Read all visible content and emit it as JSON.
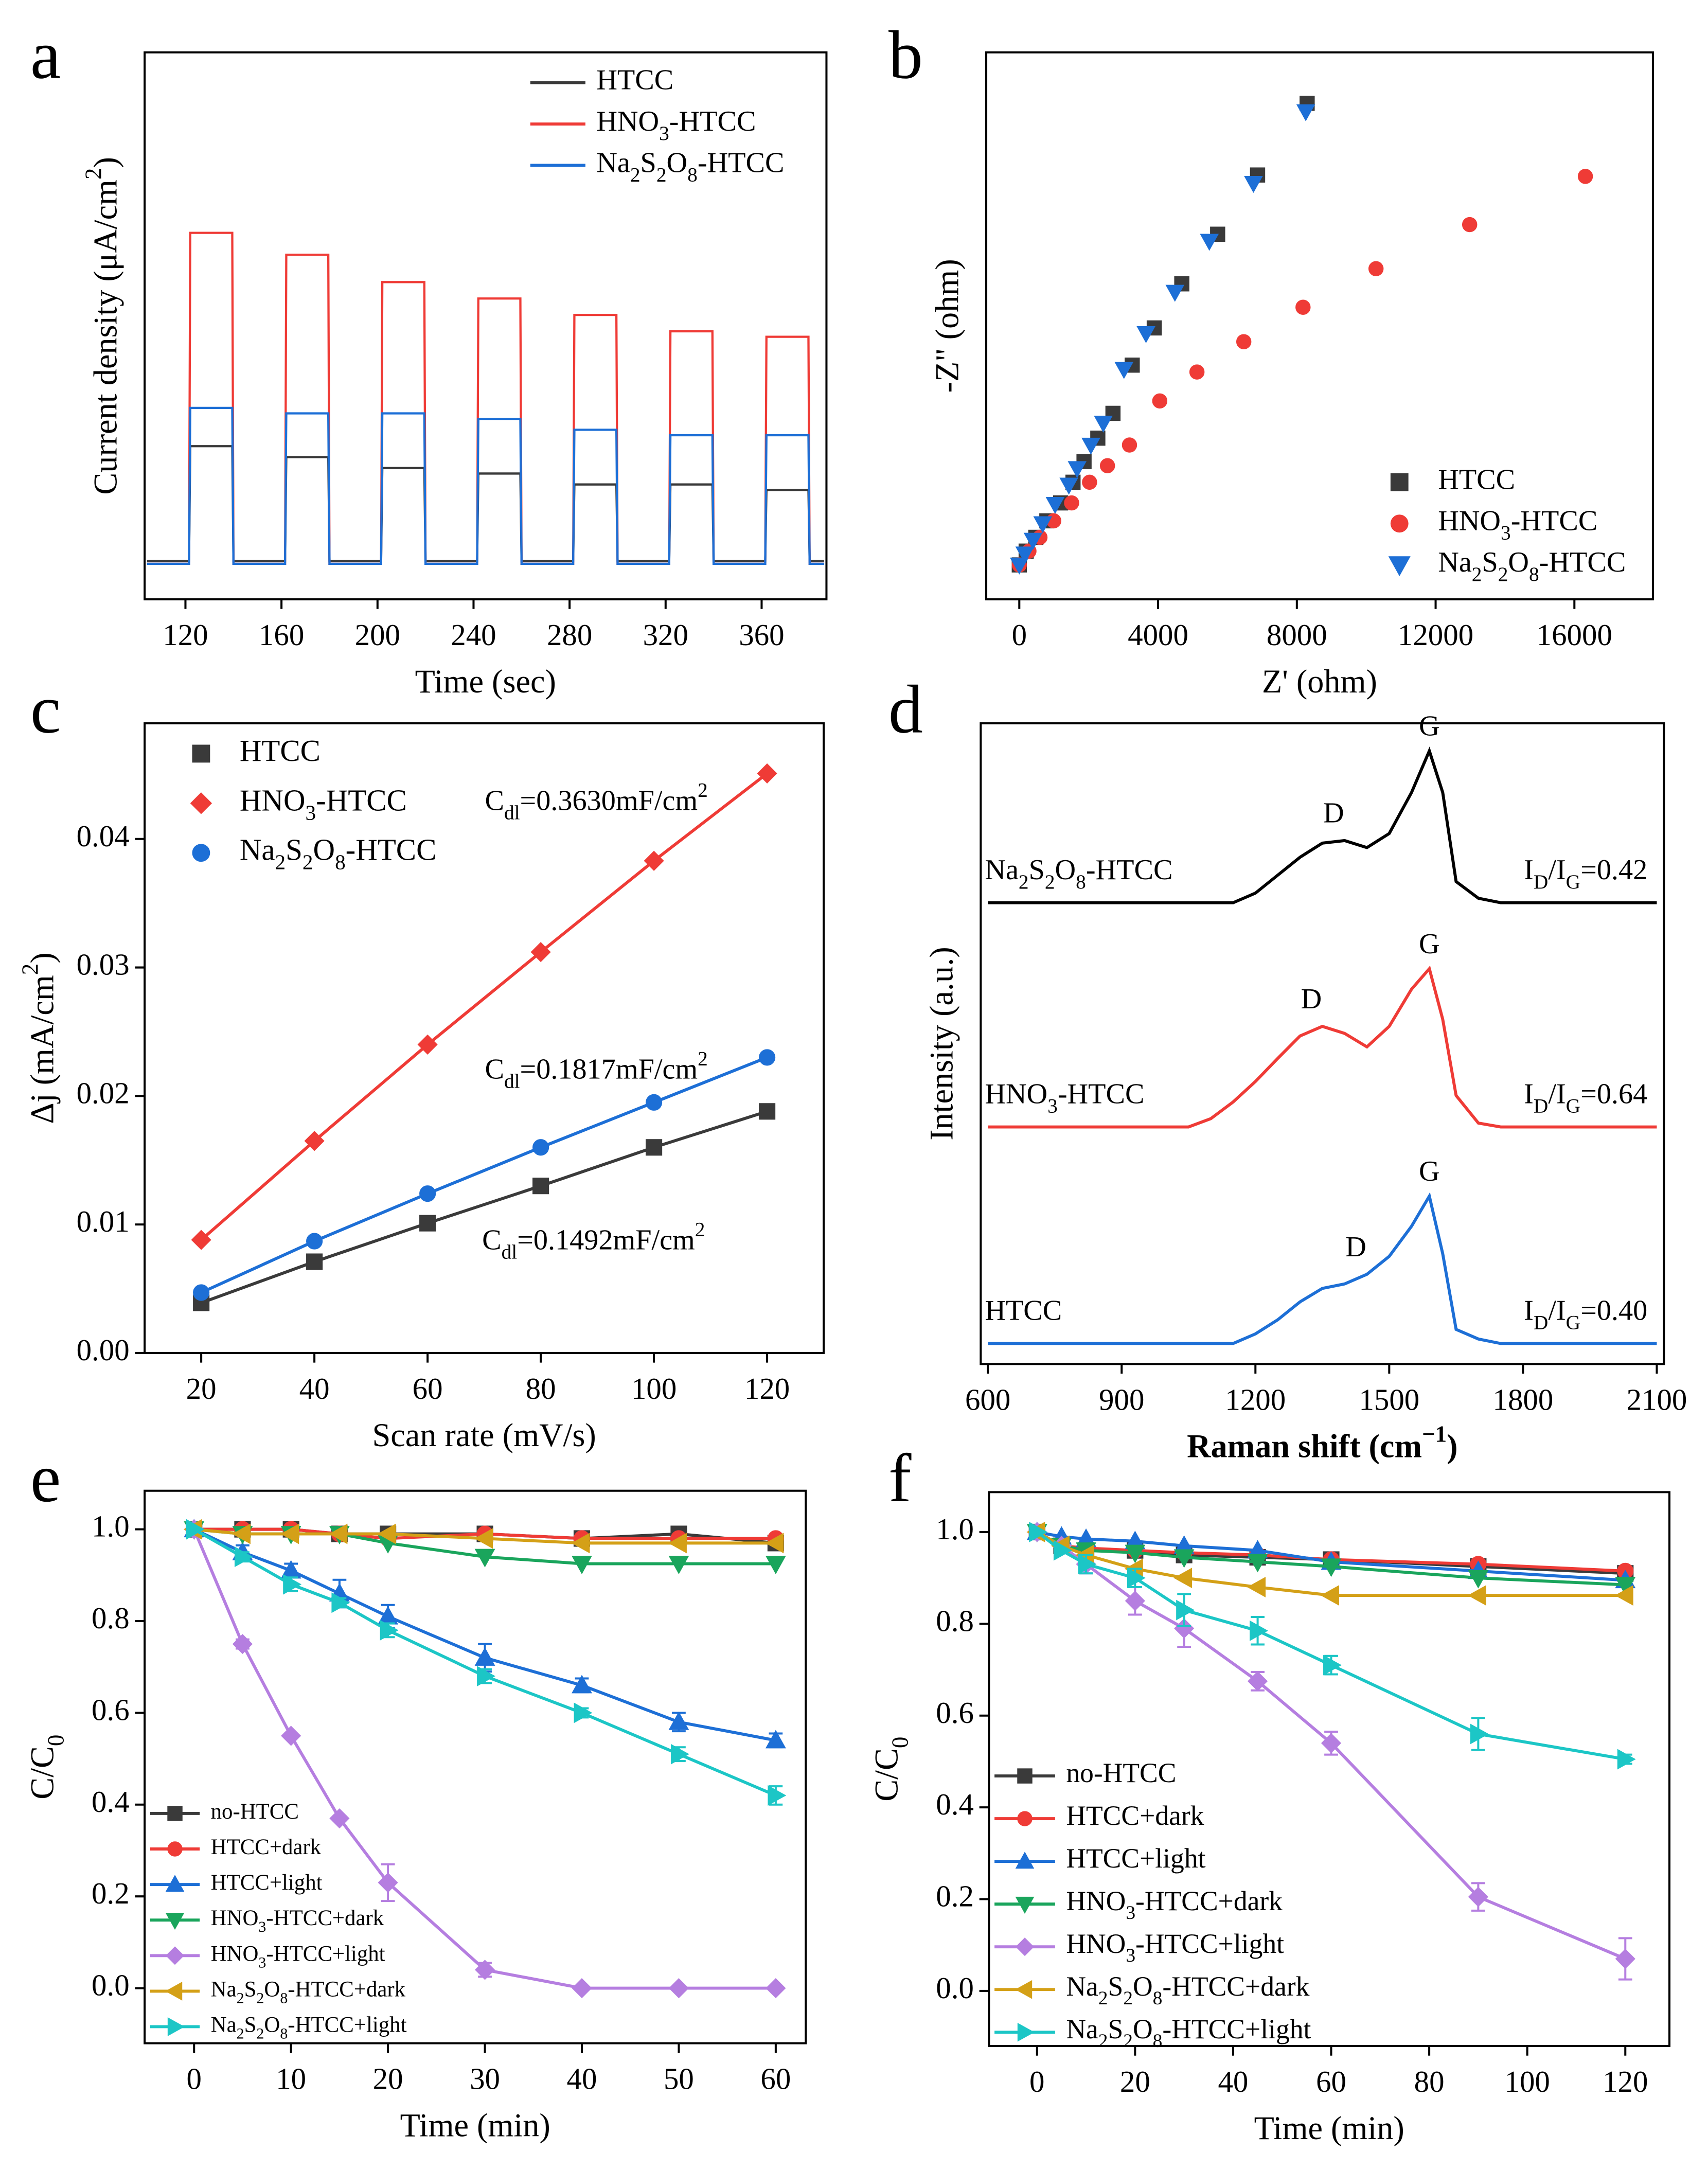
{
  "chart_data": [
    {
      "type": "line",
      "panel_label": "a",
      "x_label": "Time (sec)",
      "y_label": "Current density (μA/cm2)",
      "legend": "upper right",
      "x": [
        104,
        121.5,
        122,
        139.5,
        140,
        161.5,
        162,
        179.5,
        180,
        201.5,
        202,
        219.5,
        220,
        241.5,
        242,
        259.5,
        260,
        281.5,
        282,
        299.5,
        300,
        321.5,
        322,
        339.5,
        340,
        361.5,
        362,
        379.5,
        380,
        386
      ],
      "xlim": [
        103,
        387
      ],
      "xticks": [
        120,
        160,
        200,
        240,
        280,
        320,
        360
      ],
      "ylim": [
        0,
        1
      ],
      "series": [
        {
          "name": "HTCC",
          "color": "#3a3a3a",
          "values": [
            0.07,
            0.07,
            0.28,
            0.28,
            0.07,
            0.07,
            0.26,
            0.26,
            0.07,
            0.07,
            0.24,
            0.24,
            0.07,
            0.07,
            0.23,
            0.23,
            0.07,
            0.07,
            0.21,
            0.21,
            0.07,
            0.07,
            0.21,
            0.21,
            0.07,
            0.07,
            0.2,
            0.2,
            0.07,
            0.07
          ]
        },
        {
          "name": "HNO3-HTCC",
          "color": "#ef3b36",
          "values": [
            0.065,
            0.065,
            0.67,
            0.67,
            0.065,
            0.065,
            0.63,
            0.63,
            0.065,
            0.065,
            0.58,
            0.58,
            0.065,
            0.065,
            0.55,
            0.55,
            0.065,
            0.065,
            0.52,
            0.52,
            0.065,
            0.065,
            0.49,
            0.49,
            0.065,
            0.065,
            0.48,
            0.48,
            0.065,
            0.065
          ]
        },
        {
          "name": "Na2S2O8-HTCC",
          "color": "#1d6fd6",
          "values": [
            0.065,
            0.065,
            0.35,
            0.35,
            0.065,
            0.065,
            0.34,
            0.34,
            0.065,
            0.065,
            0.34,
            0.34,
            0.065,
            0.065,
            0.33,
            0.33,
            0.065,
            0.065,
            0.31,
            0.31,
            0.065,
            0.065,
            0.3,
            0.3,
            0.065,
            0.065,
            0.3,
            0.3,
            0.065,
            0.065
          ]
        }
      ]
    },
    {
      "type": "scatter",
      "panel_label": "b",
      "x_label": "Z' (ohm)",
      "y_label": "-Z\" (ohm)",
      "legend": "lower right",
      "xlim": [
        -953,
        18263
      ],
      "xticks": [
        0,
        4000,
        8000,
        12000,
        16000
      ],
      "ylim": [
        -992,
        14768
      ],
      "series": [
        {
          "name": "HTCC",
          "color": "#3a3a3a",
          "marker": "square",
          "x": [
            0,
            198,
            476,
            794,
            1191,
            1548,
            1866,
            2263,
            2700,
            3255,
            3890,
            4684,
            5717,
            6868,
            8297
          ],
          "values": [
            0,
            397,
            794,
            1270,
            1786,
            2382,
            2977,
            3652,
            4367,
            5756,
            6828,
            8098,
            9528,
            11234,
            13299
          ]
        },
        {
          "name": "HNO3-HTCC",
          "color": "#ef3b36",
          "marker": "circle",
          "x": [
            0,
            278,
            595,
            992,
            1508,
            2025,
            2541,
            3176,
            4049,
            5121,
            6471,
            8178,
            10282,
            12981,
            16316
          ],
          "values": [
            0,
            397,
            794,
            1270,
            1786,
            2382,
            2858,
            3454,
            4724,
            5558,
            6431,
            7424,
            8535,
            9805,
            11195
          ]
        },
        {
          "name": "Na2S2O8-HTCC",
          "color": "#1d6fd6",
          "marker": "triangle-down",
          "x": [
            0,
            159,
            397,
            675,
            1032,
            1429,
            1667,
            2064,
            2421,
            3017,
            3652,
            4486,
            5478,
            6749,
            8257
          ],
          "values": [
            0,
            318,
            714,
            1191,
            1747,
            2303,
            2779,
            3454,
            4089,
            5637,
            6669,
            7860,
            9329,
            10996,
            13061
          ]
        }
      ]
    },
    {
      "type": "line",
      "panel_label": "c",
      "x_label": "Scan rate (mV/s)",
      "y_label": "Δj (mA/cm2)",
      "legend": "upper left",
      "x": [
        20,
        40,
        60,
        80,
        100,
        120
      ],
      "xlim": [
        10,
        130
      ],
      "xticks": [
        20,
        40,
        60,
        80,
        100,
        120
      ],
      "ylim": [
        0,
        0.049
      ],
      "yticks": [
        {
          "value": 0,
          "label": "0.00"
        },
        0.01,
        0.02,
        0.03,
        0.04
      ],
      "annotations": [
        "Cdl=0.3630mF/cm2",
        "Cdl=0.1817mF/cm2",
        "Cdl=0.1492mF/cm2"
      ],
      "series": [
        {
          "name": "HTCC",
          "color": "#3a3a3a",
          "marker": "square",
          "values": [
            0.0039,
            0.0071,
            0.0101,
            0.013,
            0.016,
            0.0188
          ]
        },
        {
          "name": "HNO3-HTCC",
          "color": "#ef3b36",
          "marker": "diamond",
          "values": [
            0.0088,
            0.0165,
            0.024,
            0.0312,
            0.0383,
            0.0451
          ]
        },
        {
          "name": "Na2S2O8-HTCC",
          "color": "#1d6fd6",
          "marker": "circle",
          "values": [
            0.0047,
            0.0087,
            0.0124,
            0.016,
            0.0195,
            0.023
          ]
        }
      ]
    },
    {
      "type": "spectra",
      "panel_label": "d",
      "x_label": "Raman shift (cm−1)",
      "y_label": "Intensity (a.u.)",
      "peak_labels": [
        "D",
        "G"
      ],
      "x": [
        600,
        650,
        700,
        750,
        800,
        850,
        900,
        950,
        1000,
        1050,
        1100,
        1150,
        1200,
        1250,
        1300,
        1350,
        1400,
        1450,
        1500,
        1550,
        1590,
        1620,
        1650,
        1700,
        1750,
        1800,
        1850,
        1900,
        1950,
        2000,
        2050,
        2100
      ],
      "xlim": [
        584,
        2116
      ],
      "xticks": [
        600,
        900,
        1200,
        1500,
        1800,
        2100
      ],
      "ylim": [
        0,
        1
      ],
      "series": [
        {
          "name": "Na2S2O8-HTCC",
          "ratio": "ID/IG=0.42",
          "color": "#000000",
          "values": [
            0.72,
            0.72,
            0.72,
            0.72,
            0.72,
            0.72,
            0.72,
            0.72,
            0.72,
            0.72,
            0.72,
            0.72,
            0.735,
            0.763,
            0.791,
            0.813,
            0.817,
            0.806,
            0.828,
            0.892,
            0.957,
            0.892,
            0.753,
            0.727,
            0.72,
            0.72,
            0.72,
            0.72,
            0.72,
            0.72,
            0.72,
            0.72
          ]
        },
        {
          "name": "HNO3-HTCC",
          "ratio": "ID/IG=0.64",
          "color": "#ef3b36",
          "values": [
            0.37,
            0.37,
            0.37,
            0.37,
            0.37,
            0.37,
            0.37,
            0.37,
            0.37,
            0.37,
            0.383,
            0.409,
            0.441,
            0.477,
            0.512,
            0.527,
            0.516,
            0.495,
            0.527,
            0.585,
            0.617,
            0.538,
            0.419,
            0.376,
            0.37,
            0.37,
            0.37,
            0.37,
            0.37,
            0.37,
            0.37,
            0.37
          ]
        },
        {
          "name": "HTCC",
          "ratio": "ID/IG=0.40",
          "color": "#1d6fd6",
          "values": [
            0.032,
            0.032,
            0.032,
            0.032,
            0.032,
            0.032,
            0.032,
            0.032,
            0.032,
            0.032,
            0.032,
            0.032,
            0.047,
            0.069,
            0.097,
            0.118,
            0.125,
            0.14,
            0.168,
            0.215,
            0.262,
            0.172,
            0.054,
            0.039,
            0.032,
            0.032,
            0.032,
            0.032,
            0.032,
            0.032,
            0.032,
            0.032
          ]
        }
      ]
    },
    {
      "type": "line",
      "panel_label": "e",
      "x_label": "Time (min)",
      "y_label": "C/C0",
      "legend": "lower left",
      "x": [
        0,
        5,
        10,
        15,
        20,
        30,
        40,
        50,
        60
      ],
      "xlim": [
        -5.1,
        63.1
      ],
      "xticks": [
        0,
        10,
        20,
        30,
        40,
        50,
        60
      ],
      "ylim": [
        -0.12,
        1.084
      ],
      "yticks": [
        {
          "value": 0,
          "label": "0.0"
        },
        0.2,
        0.4,
        0.6,
        0.8,
        {
          "value": 1,
          "label": "1.0"
        }
      ],
      "series": [
        {
          "name": "no-HTCC",
          "color": "#3a3a3a",
          "marker": "square",
          "values": [
            1,
            1,
            1,
            0.99,
            0.99,
            0.99,
            0.98,
            0.99,
            0.97
          ]
        },
        {
          "name": "HTCC+dark",
          "color": "#ef3b36",
          "marker": "circle",
          "values": [
            1,
            1,
            1,
            0.99,
            0.98,
            0.99,
            0.98,
            0.98,
            0.98
          ]
        },
        {
          "name": "HTCC+light",
          "color": "#1d6fd6",
          "marker": "triangle-up",
          "values": [
            1,
            0.95,
            0.91,
            0.86,
            0.81,
            0.72,
            0.66,
            0.58,
            0.54
          ],
          "errors": [
            0,
            0.015,
            0.015,
            0.03,
            0.025,
            0.03,
            0.015,
            0.02,
            0.015
          ]
        },
        {
          "name": "HNO3-HTCC+dark",
          "color": "#1aa55c",
          "marker": "triangle-down",
          "values": [
            1,
            0.99,
            0.99,
            0.99,
            0.97,
            0.94,
            0.925,
            0.925,
            0.925
          ]
        },
        {
          "name": "HNO3-HTCC+light",
          "color": "#b57ee0",
          "marker": "diamond",
          "values": [
            1,
            0.75,
            0.55,
            0.37,
            0.23,
            0.04,
            0,
            0,
            0
          ],
          "errors": [
            0,
            0.01,
            0.005,
            0.005,
            0.04,
            0.015,
            0,
            0,
            0
          ]
        },
        {
          "name": "Na2S2O8-HTCC+dark",
          "color": "#d4a017",
          "marker": "triangle-left",
          "values": [
            1,
            0.99,
            0.99,
            0.99,
            0.99,
            0.98,
            0.97,
            0.97,
            0.97
          ]
        },
        {
          "name": "Na2S2O8-HTCC+light",
          "color": "#1cc6c6",
          "marker": "triangle-right",
          "values": [
            1,
            0.94,
            0.88,
            0.84,
            0.78,
            0.68,
            0.6,
            0.51,
            0.42
          ],
          "errors": [
            0,
            0.01,
            0.015,
            0.01,
            0.015,
            0.015,
            0.01,
            0.015,
            0.02
          ]
        }
      ]
    },
    {
      "type": "line",
      "panel_label": "f",
      "x_label": "Time (min)",
      "y_label": "C/C0",
      "legend": "lower left",
      "x": [
        0,
        5,
        10,
        20,
        30,
        45,
        60,
        90,
        120
      ],
      "xlim": [
        -9.8,
        129
      ],
      "xticks": [
        0,
        20,
        40,
        60,
        80,
        100,
        120
      ],
      "ylim": [
        -0.12,
        1.087
      ],
      "yticks": [
        {
          "value": 0,
          "label": "0.0"
        },
        0.2,
        0.4,
        0.6,
        0.8,
        {
          "value": 1,
          "label": "1.0"
        }
      ],
      "series": [
        {
          "name": "no-HTCC",
          "color": "#3a3a3a",
          "marker": "square",
          "values": [
            1,
            0.97,
            0.96,
            0.96,
            0.95,
            0.945,
            0.94,
            0.925,
            0.91
          ]
        },
        {
          "name": "HTCC+dark",
          "color": "#ef3b36",
          "marker": "circle",
          "values": [
            1,
            0.97,
            0.965,
            0.96,
            0.955,
            0.95,
            0.94,
            0.93,
            0.915
          ]
        },
        {
          "name": "HTCC+light",
          "color": "#1d6fd6",
          "marker": "triangle-up",
          "values": [
            1,
            0.99,
            0.985,
            0.98,
            0.97,
            0.96,
            0.935,
            0.915,
            0.895
          ]
        },
        {
          "name": "HNO3-HTCC+dark",
          "color": "#1aa55c",
          "marker": "triangle-down",
          "values": [
            1,
            0.97,
            0.96,
            0.955,
            0.945,
            0.935,
            0.925,
            0.9,
            0.885
          ]
        },
        {
          "name": "HNO3-HTCC+light",
          "color": "#b57ee0",
          "marker": "diamond",
          "values": [
            1,
            0.97,
            0.93,
            0.85,
            0.79,
            0.675,
            0.54,
            0.205,
            0.07
          ],
          "errors": [
            0,
            0,
            0.02,
            0.03,
            0.04,
            0.02,
            0.025,
            0.03,
            0.045
          ]
        },
        {
          "name": "Na2S2O8-HTCC+dark",
          "color": "#d4a017",
          "marker": "triangle-left",
          "values": [
            1,
            0.97,
            0.95,
            0.92,
            0.9,
            0.88,
            0.862,
            0.862,
            0.862
          ]
        },
        {
          "name": "Na2S2O8-HTCC+light",
          "color": "#1cc6c6",
          "marker": "triangle-right",
          "values": [
            1,
            0.96,
            0.93,
            0.9,
            0.83,
            0.785,
            0.71,
            0.56,
            0.505
          ],
          "errors": [
            0,
            0,
            0.02,
            0.02,
            0.035,
            0.03,
            0.02,
            0.035,
            0.01
          ]
        }
      ]
    }
  ]
}
